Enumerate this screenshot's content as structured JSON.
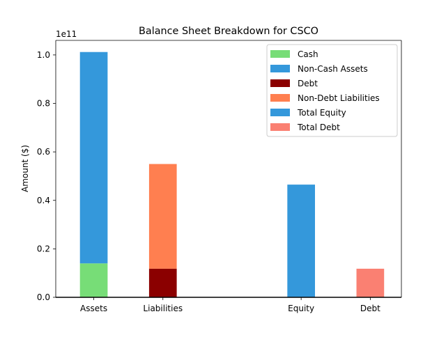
{
  "chart_data": {
    "type": "bar",
    "title": "Balance Sheet Breakdown for CSCO",
    "xlabel": "",
    "ylabel": "Amount ($)",
    "y_offset_label": "1e11",
    "y_scale": 100000000000,
    "ylim": [
      0,
      1.06
    ],
    "yticks": [
      0.0,
      0.2,
      0.4,
      0.6,
      0.8,
      1.0
    ],
    "ytick_labels": [
      "0.0",
      "0.2",
      "0.4",
      "0.6",
      "0.8",
      "1.0"
    ],
    "categories": [
      "Assets",
      "Liabilities",
      "Equity",
      "Debt"
    ],
    "category_x": [
      0,
      1,
      3,
      4
    ],
    "bar_width": 0.4,
    "xlim": [
      -0.55,
      4.45
    ],
    "legend_position": "top-right",
    "series": [
      {
        "name": "Cash",
        "category": "Assets",
        "bottom": 0,
        "value": 0.14,
        "color": "#77dd77"
      },
      {
        "name": "Non-Cash Assets",
        "category": "Assets",
        "bottom": 0.14,
        "value": 0.872,
        "color": "#3498db"
      },
      {
        "name": "Debt",
        "category": "Liabilities",
        "bottom": 0,
        "value": 0.118,
        "color": "#8b0000"
      },
      {
        "name": "Non-Debt Liabilities",
        "category": "Liabilities",
        "bottom": 0.118,
        "value": 0.432,
        "color": "#ff7f50"
      },
      {
        "name": "Total Equity",
        "category": "Equity",
        "bottom": 0,
        "value": 0.465,
        "color": "#3498db"
      },
      {
        "name": "Total Debt",
        "category": "Debt",
        "bottom": 0,
        "value": 0.118,
        "color": "#fa8072"
      }
    ]
  }
}
